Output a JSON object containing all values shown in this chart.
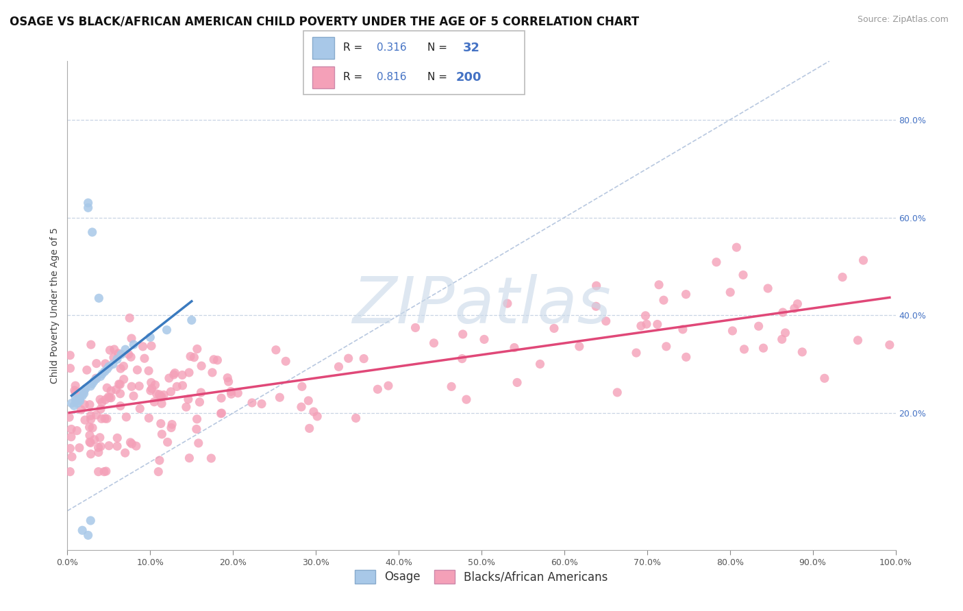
{
  "title": "OSAGE VS BLACK/AFRICAN AMERICAN CHILD POVERTY UNDER THE AGE OF 5 CORRELATION CHART",
  "source": "Source: ZipAtlas.com",
  "ylabel": "Child Poverty Under the Age of 5",
  "xlim": [
    0,
    1.0
  ],
  "ylim": [
    -0.08,
    0.92
  ],
  "osage_R": 0.316,
  "osage_N": 32,
  "black_R": 0.816,
  "black_N": 200,
  "osage_color": "#a8c8e8",
  "osage_line_color": "#3a7abf",
  "black_color": "#f4a0b8",
  "black_line_color": "#e04878",
  "diagonal_color": "#b8c8e0",
  "watermark_color": "#c8d8e8",
  "background_color": "#ffffff",
  "grid_color": "#c8d4e4",
  "title_fontsize": 12,
  "axis_label_fontsize": 10,
  "tick_fontsize": 9,
  "legend_fontsize": 12,
  "source_fontsize": 9,
  "y_tick_color": "#4472c4",
  "x_tick_color": "#555555"
}
